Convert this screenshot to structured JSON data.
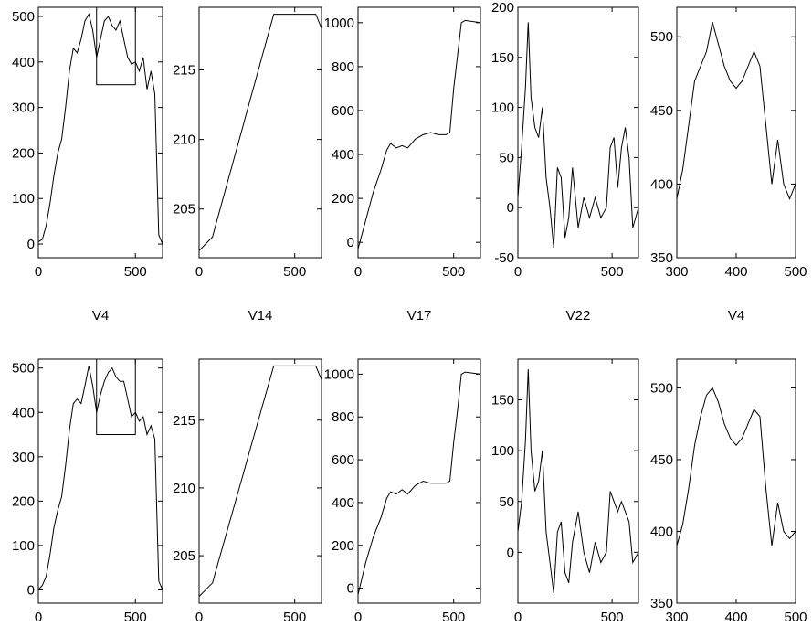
{
  "figure": {
    "chart_data": [
      {
        "type": "line",
        "title": "",
        "row": "top",
        "xlim": [
          0,
          640
        ],
        "ylim": [
          -30,
          520
        ],
        "xticks": [
          0,
          500
        ],
        "yticks": [
          0,
          100,
          200,
          300,
          400,
          500
        ],
        "inset_box": {
          "x": [
            300,
            500
          ],
          "y": [
            350,
            520
          ]
        },
        "series": [
          {
            "x": [
              0,
              20,
              40,
              60,
              80,
              100,
              120,
              140,
              160,
              180,
              200,
              220,
              240,
              260,
              280,
              300,
              320,
              340,
              360,
              380,
              400,
              420,
              440,
              460,
              480,
              500,
              520,
              540,
              560,
              580,
              600,
              620,
              640
            ],
            "y": [
              5,
              10,
              40,
              90,
              150,
              200,
              230,
              300,
              380,
              430,
              420,
              450,
              490,
              505,
              470,
              410,
              450,
              490,
              500,
              480,
              470,
              490,
              450,
              410,
              395,
              400,
              380,
              410,
              340,
              380,
              330,
              20,
              0
            ]
          }
        ]
      },
      {
        "type": "line",
        "title": "",
        "row": "top",
        "xlim": [
          0,
          640
        ],
        "ylim": [
          201.5,
          219.5
        ],
        "xticks": [
          0,
          500
        ],
        "yticks": [
          205,
          210,
          215
        ],
        "series": [
          {
            "x": [
              0,
              70,
              90,
              110,
              130,
              150,
              170,
              190,
              210,
              230,
              250,
              270,
              290,
              310,
              330,
              350,
              370,
              390,
              610,
              640
            ],
            "y": [
              202,
              203,
              204,
              205,
              206,
              207,
              208,
              209,
              210,
              211,
              212,
              213,
              214,
              215,
              216,
              217,
              218,
              219,
              219,
              218
            ]
          }
        ]
      },
      {
        "type": "line",
        "title": "",
        "row": "top",
        "xlim": [
          0,
          640
        ],
        "ylim": [
          -70,
          1070
        ],
        "xticks": [
          0,
          500
        ],
        "yticks": [
          0,
          200,
          400,
          600,
          800,
          1000
        ],
        "series": [
          {
            "x": [
              0,
              40,
              80,
              120,
              150,
              170,
              200,
              230,
              260,
              300,
              340,
              380,
              420,
              460,
              480,
              500,
              520,
              540,
              560,
              640
            ],
            "y": [
              -30,
              100,
              230,
              330,
              420,
              450,
              430,
              440,
              430,
              470,
              490,
              500,
              490,
              490,
              500,
              700,
              850,
              1000,
              1010,
              1000
            ]
          }
        ]
      },
      {
        "type": "line",
        "title": "",
        "row": "top",
        "xlim": [
          0,
          640
        ],
        "ylim": [
          -50,
          200
        ],
        "xticks": [
          0,
          500
        ],
        "yticks": [
          0,
          50,
          100,
          150,
          200,
          -50
        ],
        "series": [
          {
            "x": [
              0,
              20,
              40,
              55,
              70,
              90,
              110,
              130,
              150,
              170,
              190,
              210,
              230,
              250,
              270,
              290,
              320,
              350,
              380,
              410,
              440,
              470,
              490,
              510,
              530,
              550,
              570,
              590,
              610,
              640
            ],
            "y": [
              10,
              60,
              120,
              185,
              110,
              80,
              70,
              100,
              30,
              0,
              -40,
              40,
              30,
              -30,
              -10,
              40,
              -20,
              10,
              -10,
              10,
              -10,
              0,
              60,
              70,
              20,
              60,
              80,
              50,
              -20,
              0
            ]
          }
        ]
      },
      {
        "type": "line",
        "title": "",
        "row": "top",
        "xlim": [
          300,
          500
        ],
        "ylim": [
          350,
          520
        ],
        "xticks": [
          300,
          400,
          500
        ],
        "yticks": [
          350,
          400,
          450,
          500
        ],
        "series": [
          {
            "x": [
              300,
              310,
              320,
              330,
              340,
              350,
              360,
              370,
              380,
              390,
              400,
              410,
              420,
              430,
              440,
              450,
              460,
              470,
              480,
              490,
              500
            ],
            "y": [
              390,
              410,
              440,
              470,
              480,
              490,
              510,
              495,
              480,
              470,
              465,
              470,
              480,
              490,
              480,
              440,
              400,
              430,
              400,
              390,
              400
            ]
          }
        ]
      },
      {
        "type": "line",
        "title": "",
        "row": "bottom",
        "xlim": [
          0,
          640
        ],
        "ylim": [
          -30,
          520
        ],
        "xticks": [
          0,
          500
        ],
        "yticks": [
          0,
          100,
          200,
          300,
          400,
          500
        ],
        "inset_box": {
          "x": [
            300,
            500
          ],
          "y": [
            350,
            520
          ]
        },
        "series": [
          {
            "x": [
              0,
              20,
              40,
              60,
              80,
              100,
              120,
              140,
              160,
              180,
              200,
              220,
              240,
              260,
              280,
              300,
              320,
              340,
              360,
              380,
              400,
              420,
              440,
              460,
              480,
              500,
              520,
              540,
              560,
              580,
              600,
              620,
              640
            ],
            "y": [
              0,
              10,
              30,
              80,
              140,
              180,
              210,
              280,
              360,
              420,
              430,
              420,
              460,
              505,
              460,
              400,
              440,
              470,
              490,
              500,
              480,
              470,
              470,
              430,
              390,
              400,
              380,
              390,
              350,
              370,
              340,
              20,
              0
            ]
          }
        ]
      },
      {
        "type": "line",
        "title": "",
        "row": "bottom",
        "xlim": [
          0,
          640
        ],
        "ylim": [
          201.5,
          219.5
        ],
        "xticks": [
          0,
          500
        ],
        "yticks": [
          205,
          210,
          215
        ],
        "series": [
          {
            "x": [
              0,
              70,
              90,
              110,
              130,
              150,
              170,
              190,
              210,
              230,
              250,
              270,
              290,
              310,
              330,
              350,
              370,
              390,
              610,
              640
            ],
            "y": [
              202,
              203,
              204,
              205,
              206,
              207,
              208,
              209,
              210,
              211,
              212,
              213,
              214,
              215,
              216,
              217,
              218,
              219,
              219,
              218
            ]
          }
        ]
      },
      {
        "type": "line",
        "title": "",
        "row": "bottom",
        "xlim": [
          0,
          640
        ],
        "ylim": [
          -70,
          1070
        ],
        "xticks": [
          0,
          500
        ],
        "yticks": [
          0,
          200,
          400,
          600,
          800,
          1000
        ],
        "series": [
          {
            "x": [
              0,
              40,
              80,
              120,
              150,
              170,
              200,
              230,
              260,
              300,
              340,
              380,
              420,
              460,
              480,
              500,
              520,
              540,
              560,
              640
            ],
            "y": [
              -30,
              120,
              240,
              330,
              420,
              450,
              440,
              460,
              440,
              480,
              500,
              490,
              490,
              490,
              500,
              680,
              830,
              1000,
              1010,
              1000
            ]
          }
        ]
      },
      {
        "type": "line",
        "title": "",
        "row": "bottom",
        "xlim": [
          0,
          640
        ],
        "ylim": [
          -50,
          190
        ],
        "xticks": [
          0,
          500
        ],
        "yticks": [
          0,
          50,
          100,
          150
        ],
        "series": [
          {
            "x": [
              0,
              20,
              40,
              55,
              70,
              90,
              110,
              130,
              150,
              170,
              190,
              210,
              230,
              250,
              270,
              290,
              320,
              350,
              380,
              410,
              440,
              470,
              490,
              510,
              530,
              550,
              570,
              590,
              610,
              640
            ],
            "y": [
              20,
              50,
              110,
              180,
              100,
              60,
              70,
              100,
              20,
              -10,
              -40,
              20,
              30,
              -20,
              -30,
              10,
              40,
              0,
              -20,
              10,
              -10,
              0,
              60,
              50,
              40,
              50,
              40,
              30,
              -10,
              0
            ]
          }
        ]
      },
      {
        "type": "line",
        "title": "",
        "row": "bottom",
        "xlim": [
          300,
          500
        ],
        "ylim": [
          350,
          520
        ],
        "xticks": [
          300,
          400,
          500
        ],
        "yticks": [
          350,
          400,
          450,
          500
        ],
        "series": [
          {
            "x": [
              300,
              310,
              320,
              330,
              340,
              350,
              360,
              370,
              380,
              390,
              400,
              410,
              420,
              430,
              440,
              450,
              460,
              470,
              480,
              490,
              500
            ],
            "y": [
              390,
              405,
              430,
              460,
              480,
              495,
              500,
              490,
              475,
              465,
              460,
              465,
              475,
              485,
              480,
              430,
              390,
              420,
              400,
              395,
              400
            ]
          }
        ]
      }
    ],
    "row_titles": [
      "V4",
      "V14",
      "V17",
      "V22",
      "V4"
    ]
  }
}
